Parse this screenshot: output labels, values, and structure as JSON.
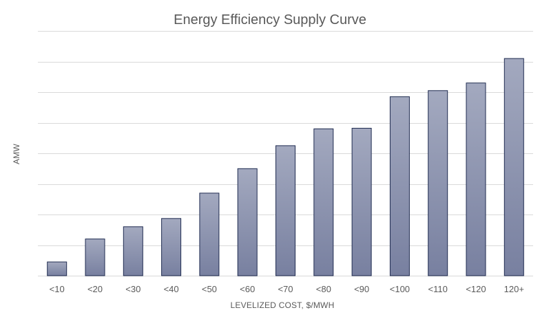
{
  "chart_data": {
    "type": "bar",
    "title": "Energy Efficiency Supply Curve",
    "xlabel": "LEVELIZED COST, $/MWH",
    "ylabel": "AMW",
    "categories": [
      "<10",
      "<20",
      "<30",
      "<40",
      "<50",
      "<60",
      "<70",
      "<80",
      "<90",
      "<100",
      "<110",
      "<120",
      "120+"
    ],
    "values": [
      0.45,
      1.2,
      1.6,
      1.87,
      2.7,
      3.5,
      4.25,
      4.8,
      4.82,
      5.85,
      6.05,
      6.3,
      7.1
    ],
    "ylim": [
      0,
      8
    ],
    "y_gridlines": true,
    "y_tick_labels_shown": false,
    "bar_color_top": "#a3a9bf",
    "bar_color_bottom": "#7880a0",
    "bar_border_color": "#1f2b50",
    "grid_color": "#d9d9d9",
    "text_color": "#595959"
  }
}
